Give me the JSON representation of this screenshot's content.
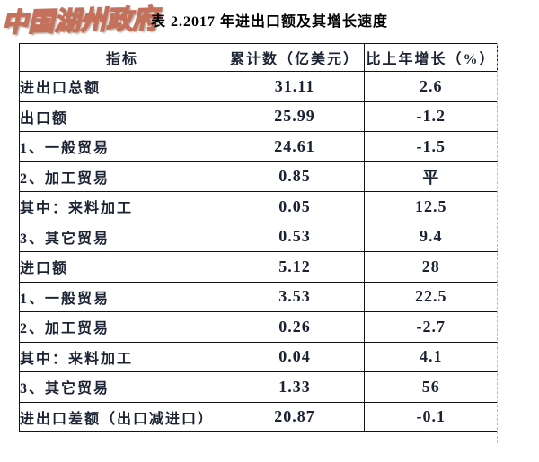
{
  "watermark": {
    "text": "中国湖州政府",
    "color": "#c5705a"
  },
  "title": "表 2.2017 年进出口额及其增长速度",
  "table": {
    "columns": [
      "指标",
      "累计数（亿美元）",
      "比上年增长（%）"
    ],
    "rows": [
      {
        "indicator": "进出口总额",
        "indent": 0,
        "value": "31.11",
        "growth": "2.6"
      },
      {
        "indicator": "出口额",
        "indent": 1,
        "value": "25.99",
        "growth": "-1.2"
      },
      {
        "indicator": "1、一般贸易",
        "indent": 2,
        "value": "24.61",
        "growth": "-1.5"
      },
      {
        "indicator": "2、加工贸易",
        "indent": 2,
        "value": "0.85",
        "growth": "平"
      },
      {
        "indicator": "其中：来料加工",
        "indent": 3,
        "value": "0.05",
        "growth": "12.5"
      },
      {
        "indicator": "3、其它贸易",
        "indent": 2,
        "value": "0.53",
        "growth": "9.4"
      },
      {
        "indicator": "进口额",
        "indent": 1,
        "value": "5.12",
        "growth": "28"
      },
      {
        "indicator": "1、一般贸易",
        "indent": 2,
        "value": "3.53",
        "growth": "22.5"
      },
      {
        "indicator": "2、加工贸易",
        "indent": 2,
        "value": "0.26",
        "growth": "-2.7"
      },
      {
        "indicator": "其中：来料加工",
        "indent": 3,
        "value": "0.04",
        "growth": "4.1"
      },
      {
        "indicator": "3、其它贸易",
        "indent": 2,
        "value": "1.33",
        "growth": "56"
      },
      {
        "indicator": "进出口差额（出口减进口）",
        "indent": 0,
        "value": "20.87",
        "growth": "-0.1"
      }
    ]
  },
  "colors": {
    "text": "#1b2233",
    "border": "#141414",
    "watermark_stroke": "#c5705a",
    "dashed_line": "#b8b8b8"
  }
}
